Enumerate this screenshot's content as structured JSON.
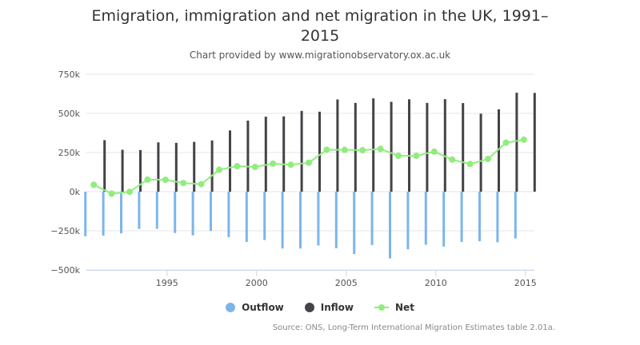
{
  "chart_title_line1": "Emigration, immigration and net migration in the UK, 1991–",
  "chart_title_line2": "2015",
  "chart_subtitle": "Chart provided by www.migrationobservatory.ox.ac.uk",
  "credit": "Source: ONS, Long-Term International Migration Estimates table 2.01a.",
  "colors": {
    "outflow": "#7cb5ec",
    "inflow": "#434348",
    "net": "#90ed7d",
    "grid": "#e6e6e6",
    "axis": "#ccd6eb"
  },
  "legend": {
    "outflow": "Outflow",
    "inflow": "Inflow",
    "net": "Net"
  },
  "chart_data": {
    "type": "bar",
    "title": "Emigration, immigration and net migration in the UK, 1991–2015",
    "subtitle": "Chart provided by www.migrationobservatory.ox.ac.uk",
    "x": [
      1991,
      1992,
      1993,
      1994,
      1995,
      1996,
      1997,
      1998,
      1999,
      2000,
      2001,
      2002,
      2003,
      2004,
      2005,
      2006,
      2007,
      2008,
      2009,
      2010,
      2011,
      2012,
      2013,
      2014,
      2015
    ],
    "x_ticks": [
      1995,
      2000,
      2005,
      2010,
      2015
    ],
    "y_ticks": [
      -500000,
      -250000,
      0,
      250000,
      500000,
      750000
    ],
    "y_tick_labels": [
      "−500k",
      "−250k",
      "0k",
      "250k",
      "500k",
      "750k"
    ],
    "ylim": [
      -500000,
      750000
    ],
    "xlim": [
      1990.5,
      2015.5
    ],
    "grid": true,
    "legend_position": "bottom",
    "series": [
      {
        "name": "Outflow",
        "type": "bar",
        "values": [
          -285000,
          -281000,
          -266000,
          -238000,
          -237000,
          -264000,
          -279000,
          -251000,
          -291000,
          -321000,
          -309000,
          -363000,
          -363000,
          -344000,
          -361000,
          -398000,
          -341000,
          -427000,
          -368000,
          -339000,
          -351000,
          -321000,
          -317000,
          -323000,
          -299000
        ]
      },
      {
        "name": "Inflow",
        "type": "bar",
        "values": [
          329000,
          268000,
          266000,
          315000,
          312000,
          318000,
          327000,
          391000,
          454000,
          479000,
          481000,
          516000,
          511000,
          589000,
          567000,
          596000,
          574000,
          590000,
          567000,
          591000,
          566000,
          498000,
          526000,
          632000,
          631000
        ]
      },
      {
        "name": "Net",
        "type": "line",
        "values": [
          44000,
          -13000,
          -1000,
          77000,
          76000,
          55000,
          48000,
          140000,
          163000,
          158000,
          179000,
          172000,
          185000,
          268000,
          267000,
          265000,
          273000,
          229000,
          229000,
          256000,
          205000,
          177000,
          209000,
          313000,
          332000
        ]
      }
    ]
  }
}
